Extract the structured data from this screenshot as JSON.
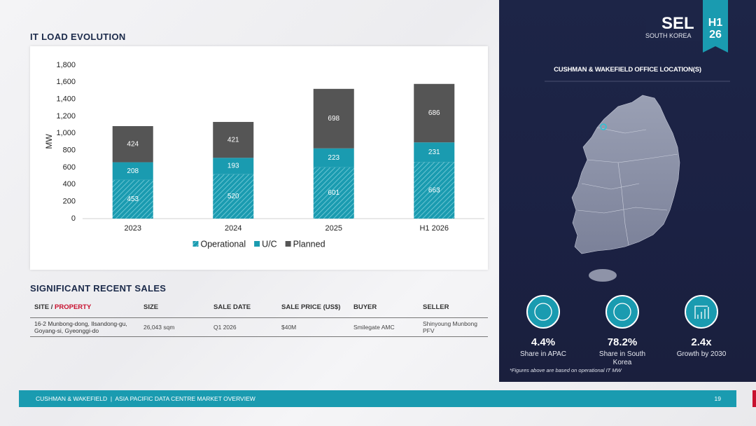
{
  "chart_data": {
    "type": "bar",
    "stacked": true,
    "title": "IT LOAD EVOLUTION",
    "y_label": "MW",
    "categories": [
      "2023",
      "2024",
      "2025",
      "H1 2026"
    ],
    "series": [
      {
        "name": "Operational",
        "color": "#1a9bb0",
        "hatch": true,
        "values": [
          453,
          520,
          601,
          663
        ]
      },
      {
        "name": "U/C",
        "color": "#1a9bb0",
        "values": [
          208,
          193,
          223,
          231
        ]
      },
      {
        "name": "Planned",
        "color": "#555555",
        "values": [
          424,
          421,
          698,
          686
        ]
      }
    ],
    "ylim": [
      0,
      1800
    ],
    "yticks": [
      0,
      200,
      400,
      600,
      800,
      {
        "value": 1000,
        "label": "1,000"
      },
      {
        "value": 1200,
        "label": "1,200"
      },
      {
        "value": 1400,
        "label": "1,400"
      },
      {
        "value": 1600,
        "label": "1,600"
      },
      {
        "value": 1800,
        "label": "1,800"
      }
    ],
    "grid": false,
    "legend": "bottom"
  },
  "sales": {
    "title": "SIGNIFICANT RECENT SALES",
    "header": [
      {
        "text": "SITE /",
        "highlight": "PROPERTY"
      },
      "SIZE",
      "SALE DATE",
      "SALE PRICE (US$)",
      "BUYER",
      "SELLER"
    ],
    "rows": [
      [
        "16-2 Munbong-dong, Ilsandong-gu, Goyang-si, Gyeonggi-do",
        "26,043 sqm",
        "Q1 2026",
        "$40M",
        "Smilegate AMC",
        "Shinyoung Munbong PFV"
      ]
    ]
  },
  "panel": {
    "market": "SEL",
    "country": "SOUTH KOREA",
    "period": [
      "H1",
      "26"
    ],
    "map_title": "CUSHMAN & WAKEFIELD OFFICE LOCATION(S)",
    "stats": [
      {
        "value": "4.4%",
        "label": "Share in APAC"
      },
      {
        "value": "78.2%",
        "label": "Share in South Korea"
      },
      {
        "value": "2.4x",
        "label": "Growth by 2030"
      }
    ],
    "footnote": "*Figures above are based on operational IT MW"
  },
  "footer": {
    "text": "CUSHMAN & WAKEFIELD  |  ASIA PACIFIC DATA CENTRE MARKET OVERVIEW",
    "page": "19"
  }
}
